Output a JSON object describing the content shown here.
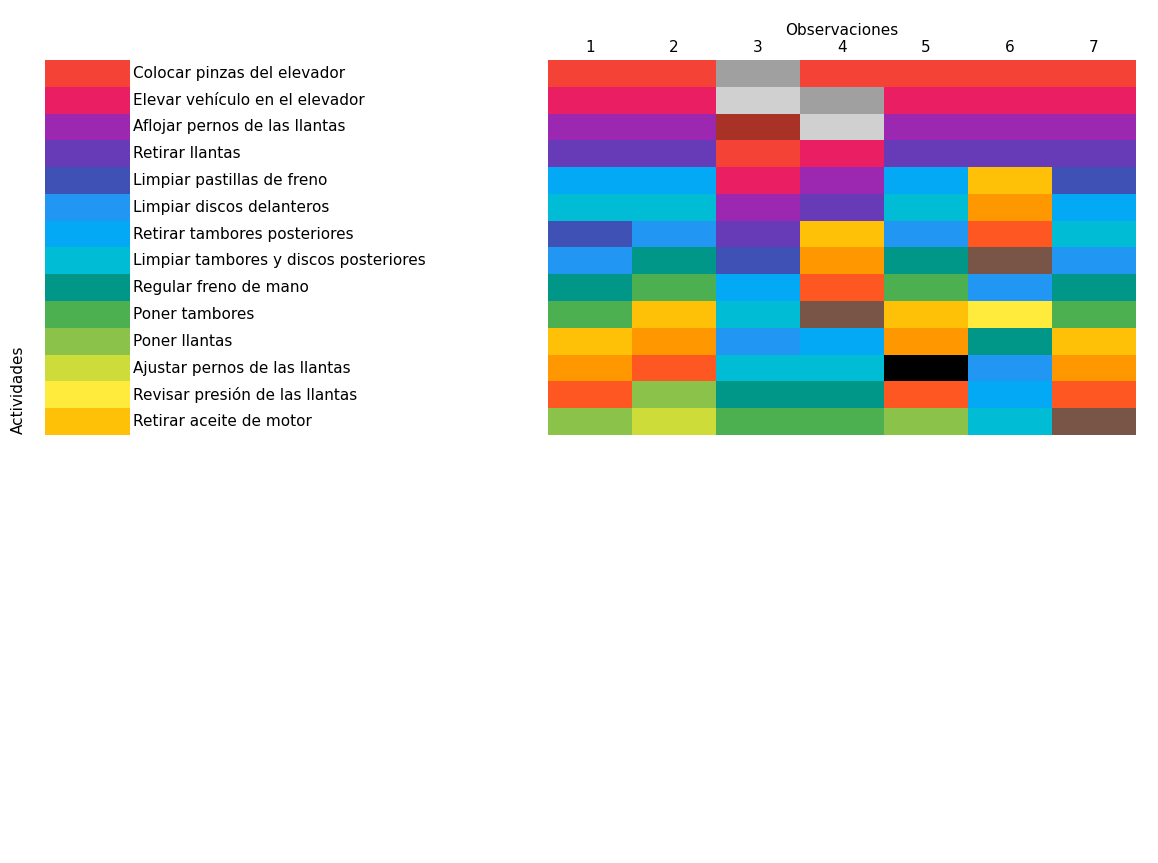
{
  "chart_data": {
    "type": "heatmap",
    "x_label": "Observaciones",
    "y_label": "Actividades",
    "categories": [
      "1",
      "2",
      "3",
      "4",
      "5",
      "6",
      "7"
    ],
    "series": [
      {
        "name": "Colocar pinzas del elevador",
        "color": "#f44336"
      },
      {
        "name": "Elevar vehículo en el elevador",
        "color": "#e91e63"
      },
      {
        "name": "Aflojar pernos de las llantas",
        "color": "#9c27b0"
      },
      {
        "name": "Retirar llantas",
        "color": "#673ab7"
      },
      {
        "name": "Limpiar pastillas de freno",
        "color": "#3f51b5"
      },
      {
        "name": "Limpiar discos delanteros",
        "color": "#2196f3"
      },
      {
        "name": "Retirar tambores posteriores",
        "color": "#03a9f4"
      },
      {
        "name": "Limpiar tambores y discos posteriores",
        "color": "#00bcd4"
      },
      {
        "name": "Regular freno de mano",
        "color": "#009688"
      },
      {
        "name": "Poner tambores",
        "color": "#4caf50"
      },
      {
        "name": "Poner llantas",
        "color": "#8bc34a"
      },
      {
        "name": "Ajustar pernos de las llantas",
        "color": "#cddc39"
      },
      {
        "name": "Revisar presión de las llantas",
        "color": "#ffeb3b"
      },
      {
        "name": "Retirar aceite de motor",
        "color": "#ffc107"
      }
    ],
    "cells": [
      [
        "#f44336",
        "#f44336",
        "#a0a0a0",
        "#f44336",
        "#f44336",
        "#f44336",
        "#f44336"
      ],
      [
        "#e91e63",
        "#e91e63",
        "#d0d0d0",
        "#a0a0a0",
        "#e91e63",
        "#e91e63",
        "#e91e63"
      ],
      [
        "#9c27b0",
        "#9c27b0",
        "#a93226",
        "#d0d0d0",
        "#9c27b0",
        "#9c27b0",
        "#9c27b0"
      ],
      [
        "#673ab7",
        "#673ab7",
        "#f44336",
        "#e91e63",
        "#673ab7",
        "#673ab7",
        "#673ab7"
      ],
      [
        "#03a9f4",
        "#03a9f4",
        "#e91e63",
        "#9c27b0",
        "#03a9f4",
        "#ffc107",
        "#3f51b5"
      ],
      [
        "#00bcd4",
        "#00bcd4",
        "#9c27b0",
        "#673ab7",
        "#00bcd4",
        "#ff9800",
        "#03a9f4"
      ],
      [
        "#3f51b5",
        "#2196f3",
        "#673ab7",
        "#ffc107",
        "#2196f3",
        "#ff5722",
        "#00bcd4"
      ],
      [
        "#2196f3",
        "#009688",
        "#3f51b5",
        "#ff9800",
        "#009688",
        "#795548",
        "#2196f3"
      ],
      [
        "#009688",
        "#4caf50",
        "#03a9f4",
        "#ff5722",
        "#4caf50",
        "#2196f3",
        "#009688"
      ],
      [
        "#4caf50",
        "#ffc107",
        "#00bcd4",
        "#795548",
        "#ffc107",
        "#ffeb3b",
        "#4caf50"
      ],
      [
        "#ffc107",
        "#ff9800",
        "#2196f3",
        "#03a9f4",
        "#ff9800",
        "#009688",
        "#ffc107"
      ],
      [
        "#ff9800",
        "#ff5722",
        "#00bcd4",
        "#00bcd4",
        "#000000",
        "#2196f3",
        "#ff9800"
      ],
      [
        "#ff5722",
        "#8bc34a",
        "#009688",
        "#009688",
        "#ff5722",
        "#03a9f4",
        "#ff5722"
      ],
      [
        "#8bc34a",
        "#cddc39",
        "#4caf50",
        "#4caf50",
        "#8bc34a",
        "#00bcd4",
        "#795548"
      ]
    ]
  }
}
